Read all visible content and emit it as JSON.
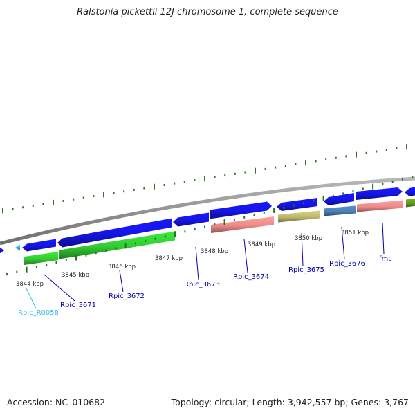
{
  "title": "Ralstonia pickettii 12J chromosome 1, complete sequence",
  "footer": {
    "accession": "Accession: NC_010682",
    "summary": "Topology: circular; Length: 3,942,557 bp; Genes: 3,767"
  },
  "colors": {
    "backbone": "#8c8c8c",
    "tick_dark": "#2e7a1e",
    "tick_light": "#1a7a1a",
    "kbp_text": "#222222",
    "gene_label": "#0000b0",
    "rna_label": "#33bbee"
  },
  "scale_labels": [
    "3844 kbp",
    "3845 kbp",
    "3846 kbp",
    "3847 kbp",
    "3848 kbp",
    "3849 kbp",
    "3850 kbp",
    "3851 kbp"
  ],
  "features": [
    {
      "name": "feature-partial-left",
      "color": "#1010e8",
      "strand": "fwd"
    },
    {
      "name": "feature-rna-small",
      "color": "#33bbee",
      "strand": "rev"
    },
    {
      "name": "feature-blue-1",
      "color": "#1515e6",
      "strand": "rev"
    },
    {
      "name": "feature-blue-2",
      "color": "#1515e6",
      "strand": "rev"
    },
    {
      "name": "feature-blue-3",
      "color": "#1515e6",
      "strand": "rev"
    },
    {
      "name": "feature-blue-4",
      "color": "#1515e6",
      "strand": "fwd"
    },
    {
      "name": "feature-blue-5",
      "color": "#1515e6",
      "strand": "rev"
    },
    {
      "name": "feature-blue-6",
      "color": "#1515e6",
      "strand": "rev"
    },
    {
      "name": "feature-blue-7",
      "color": "#1515e6",
      "strand": "fwd"
    },
    {
      "name": "feature-blue-8",
      "color": "#1515e6",
      "strand": "rev"
    },
    {
      "name": "feature-green-1",
      "color": "#33cc33",
      "strand": "none"
    },
    {
      "name": "feature-green-2",
      "color": "#33cc33",
      "strand": "none"
    },
    {
      "name": "feature-pink-1",
      "color": "#ee8a8a",
      "strand": "none"
    },
    {
      "name": "feature-khaki",
      "color": "#bdb870",
      "strand": "none"
    },
    {
      "name": "feature-steelblue",
      "color": "#4a7fb5",
      "strand": "none"
    },
    {
      "name": "feature-pink-2",
      "color": "#ee8a8a",
      "strand": "none"
    },
    {
      "name": "feature-olive",
      "color": "#6b9a20",
      "strand": "none"
    }
  ],
  "gene_labels": [
    {
      "text": "Rpic_R0058",
      "type": "rna"
    },
    {
      "text": "Rpic_3671",
      "type": "gene"
    },
    {
      "text": "Rpic_3672",
      "type": "gene"
    },
    {
      "text": "Rpic_3673",
      "type": "gene"
    },
    {
      "text": "Rpic_3674",
      "type": "gene"
    },
    {
      "text": "Rpic_3675",
      "type": "gene"
    },
    {
      "text": "Rpic_3676",
      "type": "gene"
    },
    {
      "text": "fmt",
      "type": "gene"
    }
  ]
}
